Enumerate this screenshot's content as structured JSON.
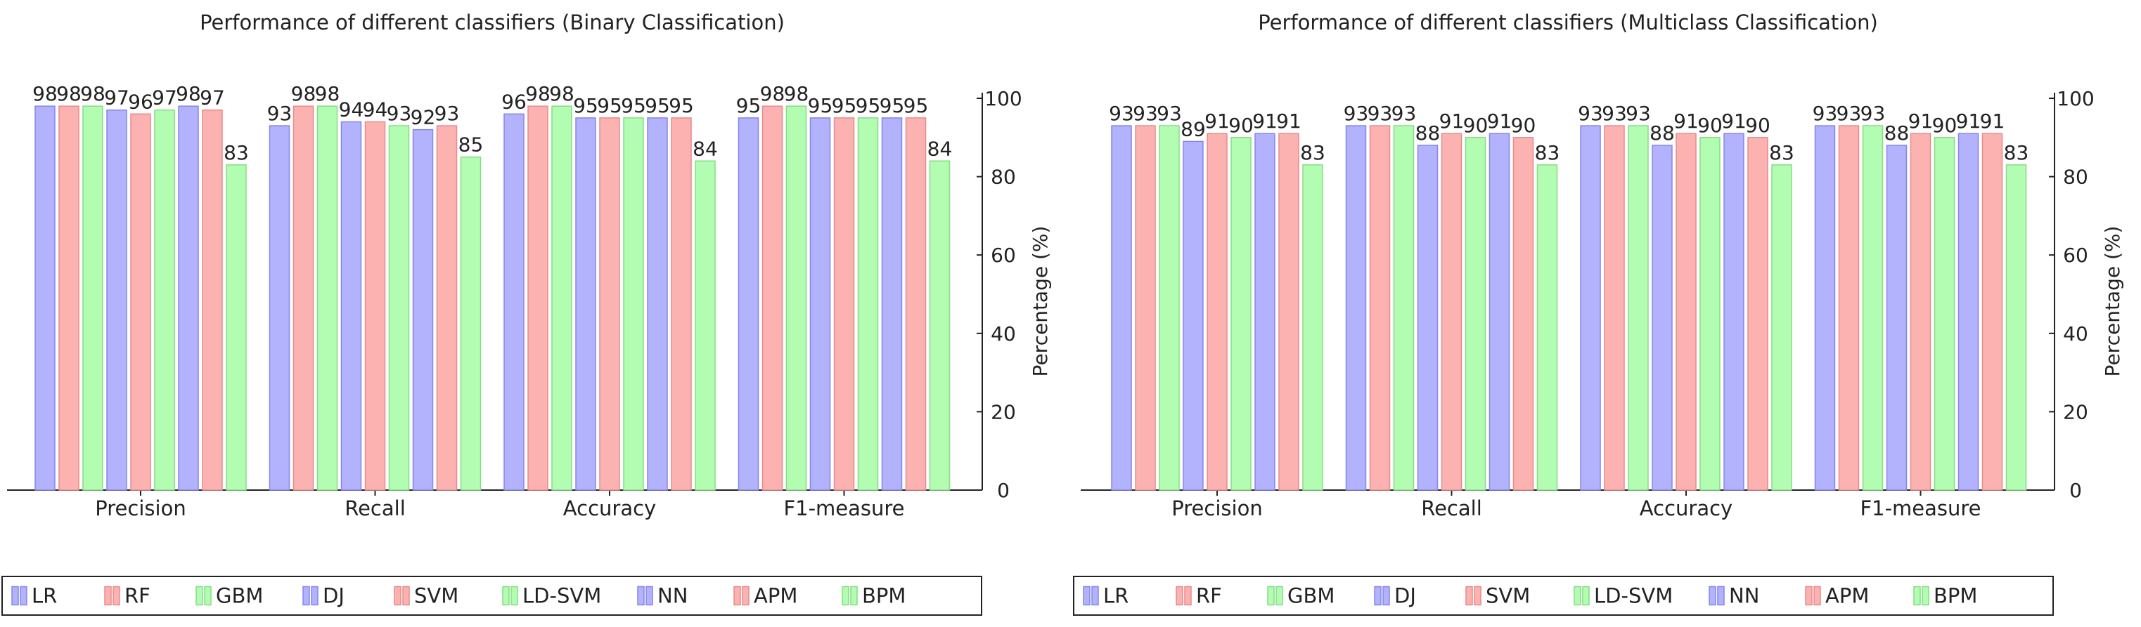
{
  "chart_data": [
    {
      "type": "bar",
      "title": "Performance of different classifiers (Binary Classification)",
      "ylabel": "Percentage (%)",
      "ylim": [
        0,
        100
      ],
      "yticks": [
        0,
        20,
        40,
        60,
        80,
        100
      ],
      "grid": false,
      "legend": "bottom",
      "categories": [
        "Precision",
        "Recall",
        "Accuracy",
        "F1-measure"
      ],
      "series": [
        {
          "name": "LR",
          "values": [
            98,
            93,
            96,
            95
          ]
        },
        {
          "name": "RF",
          "values": [
            98,
            98,
            98,
            98
          ]
        },
        {
          "name": "GBM",
          "values": [
            98,
            98,
            98,
            98
          ]
        },
        {
          "name": "DJ",
          "values": [
            97,
            94,
            95,
            95
          ]
        },
        {
          "name": "SVM",
          "values": [
            96,
            94,
            95,
            95
          ]
        },
        {
          "name": "LD-SVM",
          "values": [
            97,
            93,
            95,
            95
          ]
        },
        {
          "name": "NN",
          "values": [
            98,
            92,
            95,
            95
          ]
        },
        {
          "name": "APM",
          "values": [
            97,
            93,
            95,
            95
          ]
        },
        {
          "name": "BPM",
          "values": [
            83,
            85,
            84,
            84
          ]
        }
      ]
    },
    {
      "type": "bar",
      "title": "Performance of different classifiers (Multiclass Classification)",
      "ylabel": "Percentage (%)",
      "ylim": [
        0,
        100
      ],
      "yticks": [
        0,
        20,
        40,
        60,
        80,
        100
      ],
      "grid": false,
      "legend": "bottom",
      "categories": [
        "Precision",
        "Recall",
        "Accuracy",
        "F1-measure"
      ],
      "series": [
        {
          "name": "LR",
          "values": [
            93,
            93,
            93,
            93
          ]
        },
        {
          "name": "RF",
          "values": [
            93,
            93,
            93,
            93
          ]
        },
        {
          "name": "GBM",
          "values": [
            93,
            93,
            93,
            93
          ]
        },
        {
          "name": "DJ",
          "values": [
            89,
            88,
            88,
            88
          ]
        },
        {
          "name": "SVM",
          "values": [
            91,
            91,
            91,
            91
          ]
        },
        {
          "name": "LD-SVM",
          "values": [
            90,
            90,
            90,
            90
          ]
        },
        {
          "name": "NN",
          "values": [
            91,
            91,
            91,
            91
          ]
        },
        {
          "name": "APM",
          "values": [
            91,
            90,
            90,
            91
          ]
        },
        {
          "name": "BPM",
          "values": [
            83,
            83,
            83,
            83
          ]
        }
      ]
    }
  ],
  "colors": {
    "blue_fill": "#b2b2fd",
    "blue_stroke": "#8585ee",
    "red_fill": "#fdb2b2",
    "red_stroke": "#e88a8a",
    "green_fill": "#b2fdb2",
    "green_stroke": "#85dd85",
    "axis": "#222222"
  }
}
